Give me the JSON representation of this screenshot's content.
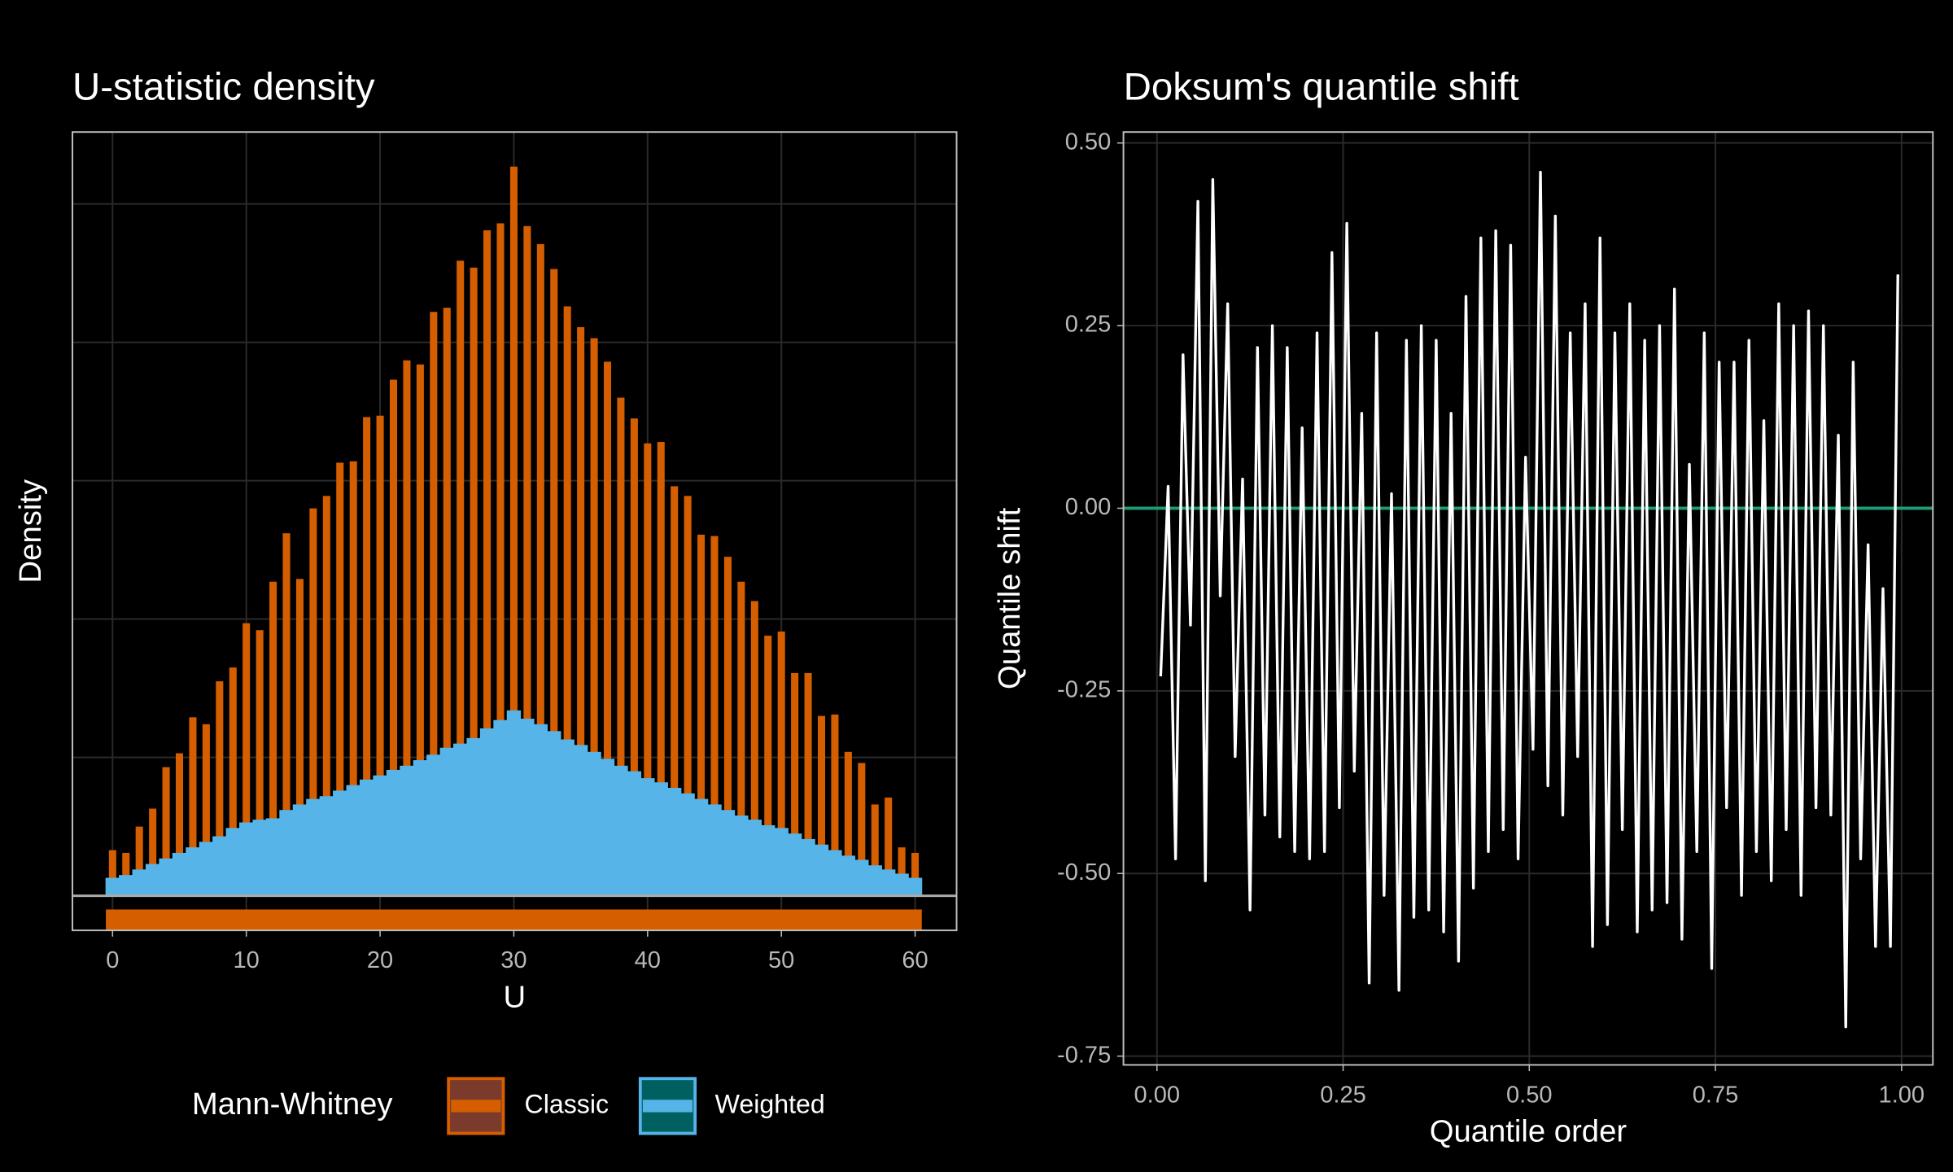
{
  "chart_data": [
    {
      "type": "bar",
      "title": "U-statistic density",
      "xlabel": "U",
      "ylabel": "Density",
      "x": [
        0,
        1,
        2,
        3,
        4,
        5,
        6,
        7,
        8,
        9,
        10,
        11,
        12,
        13,
        14,
        15,
        16,
        17,
        18,
        19,
        20,
        21,
        22,
        23,
        24,
        25,
        26,
        27,
        28,
        29,
        30,
        31,
        32,
        33,
        34,
        35,
        36,
        37,
        38,
        39,
        40,
        41,
        42,
        43,
        44,
        45,
        46,
        47,
        48,
        49,
        50,
        51,
        52,
        53,
        54,
        55,
        56,
        57,
        58,
        59,
        60
      ],
      "series": [
        {
          "name": "Classic",
          "color": "#d55e00",
          "values": [
            0.0033,
            0.0031,
            0.005,
            0.0063,
            0.0093,
            0.0103,
            0.0129,
            0.0124,
            0.0155,
            0.0165,
            0.0197,
            0.0192,
            0.0227,
            0.0262,
            0.0229,
            0.028,
            0.0289,
            0.0313,
            0.0314,
            0.0346,
            0.0347,
            0.0373,
            0.0387,
            0.0384,
            0.0422,
            0.0425,
            0.0459,
            0.0454,
            0.0481,
            0.0486,
            0.0527,
            0.0484,
            0.0471,
            0.0453,
            0.0426,
            0.0411,
            0.0403,
            0.0386,
            0.036,
            0.0345,
            0.0327,
            0.0328,
            0.0296,
            0.0289,
            0.0261,
            0.026,
            0.0245,
            0.0227,
            0.0213,
            0.0188,
            0.0191,
            0.0161,
            0.0161,
            0.013,
            0.0131,
            0.0104,
            0.0096,
            0.0066,
            0.0071,
            0.0035,
            0.0031
          ]
        },
        {
          "name": "Weighted",
          "color": "#56b4e9",
          "values": [
            0.0013,
            0.0015,
            0.0019,
            0.0023,
            0.0027,
            0.0031,
            0.0035,
            0.0039,
            0.0043,
            0.0049,
            0.0053,
            0.0055,
            0.0056,
            0.0062,
            0.0066,
            0.007,
            0.0072,
            0.0076,
            0.008,
            0.0084,
            0.0087,
            0.0091,
            0.0094,
            0.0098,
            0.0102,
            0.0107,
            0.011,
            0.0114,
            0.0121,
            0.0127,
            0.0134,
            0.0128,
            0.0124,
            0.0119,
            0.0113,
            0.0109,
            0.0104,
            0.0099,
            0.0094,
            0.009,
            0.0085,
            0.0082,
            0.0078,
            0.0074,
            0.007,
            0.0066,
            0.0062,
            0.0058,
            0.0055,
            0.0051,
            0.0049,
            0.0045,
            0.0041,
            0.0037,
            0.0033,
            0.0029,
            0.0026,
            0.0022,
            0.0019,
            0.0016,
            0.0013
          ]
        }
      ],
      "legend_title": "Mann-Whitney",
      "legend_position": "bottom",
      "xlim": [
        -3,
        63.1
      ],
      "xticks": [
        0,
        10,
        20,
        30,
        40,
        50,
        60
      ],
      "ylim": [
        -0.0025,
        0.0552
      ],
      "yticks": [
        0,
        0.01,
        0.02,
        0.03,
        0.04,
        0.05
      ],
      "grid": true
    },
    {
      "type": "line",
      "title": "Doksum's quantile shift",
      "xlabel": "Quantile order",
      "ylabel": "Quantile shift",
      "x": [
        0.005,
        0.015,
        0.025,
        0.035,
        0.045,
        0.055,
        0.065,
        0.075,
        0.085,
        0.095,
        0.105,
        0.115,
        0.125,
        0.135,
        0.145,
        0.155,
        0.165,
        0.175,
        0.185,
        0.195,
        0.205,
        0.215,
        0.225,
        0.235,
        0.245,
        0.255,
        0.265,
        0.275,
        0.285,
        0.295,
        0.305,
        0.315,
        0.325,
        0.335,
        0.345,
        0.355,
        0.365,
        0.375,
        0.385,
        0.395,
        0.405,
        0.415,
        0.425,
        0.435,
        0.445,
        0.455,
        0.465,
        0.475,
        0.485,
        0.495,
        0.505,
        0.515,
        0.525,
        0.535,
        0.545,
        0.555,
        0.565,
        0.575,
        0.585,
        0.595,
        0.605,
        0.615,
        0.625,
        0.635,
        0.645,
        0.655,
        0.665,
        0.675,
        0.685,
        0.695,
        0.705,
        0.715,
        0.725,
        0.735,
        0.745,
        0.755,
        0.765,
        0.775,
        0.785,
        0.795,
        0.805,
        0.815,
        0.825,
        0.835,
        0.845,
        0.855,
        0.865,
        0.875,
        0.885,
        0.895,
        0.905,
        0.915,
        0.925,
        0.935,
        0.945,
        0.955,
        0.965,
        0.975,
        0.985,
        0.995
      ],
      "values": [
        -0.23,
        0.03,
        -0.48,
        0.21,
        -0.16,
        0.42,
        -0.51,
        0.45,
        -0.12,
        0.28,
        -0.34,
        0.04,
        -0.55,
        0.22,
        -0.42,
        0.25,
        -0.45,
        0.22,
        -0.47,
        0.11,
        -0.48,
        0.24,
        -0.47,
        0.35,
        -0.41,
        0.39,
        -0.36,
        0.13,
        -0.65,
        0.24,
        -0.53,
        0.02,
        -0.66,
        0.23,
        -0.56,
        0.25,
        -0.55,
        0.23,
        -0.58,
        0.13,
        -0.62,
        0.29,
        -0.52,
        0.37,
        -0.47,
        0.38,
        -0.44,
        0.36,
        -0.48,
        0.07,
        -0.33,
        0.46,
        -0.38,
        0.4,
        -0.42,
        0.24,
        -0.34,
        0.28,
        -0.6,
        0.37,
        -0.57,
        0.24,
        -0.44,
        0.28,
        -0.58,
        0.23,
        -0.55,
        0.25,
        -0.54,
        0.3,
        -0.59,
        0.06,
        -0.47,
        0.24,
        -0.63,
        0.2,
        -0.41,
        0.2,
        -0.53,
        0.23,
        -0.47,
        0.12,
        -0.51,
        0.28,
        -0.44,
        0.25,
        -0.53,
        0.27,
        -0.41,
        0.25,
        -0.42,
        0.1,
        -0.71,
        0.2,
        -0.48,
        -0.05,
        -0.6,
        -0.11,
        -0.6,
        0.32
      ],
      "color": "#ffffff",
      "reference_line": {
        "y": 0,
        "color": "#1b9e77"
      },
      "xlim": [
        -0.045,
        1.042
      ],
      "xticks": [
        {
          "value": 0,
          "label": "0.00"
        },
        0.25,
        {
          "value": 0.5,
          "label": "0.50"
        },
        0.75,
        {
          "value": 1,
          "label": "1.00"
        }
      ],
      "ylim": [
        -0.762,
        0.515
      ],
      "yticks": [
        -0.75,
        {
          "value": -0.5,
          "label": "-0.50"
        },
        -0.25,
        {
          "value": 0,
          "label": "0.00"
        },
        0.25,
        {
          "value": 0.5,
          "label": "0.50"
        }
      ],
      "grid": true
    }
  ]
}
